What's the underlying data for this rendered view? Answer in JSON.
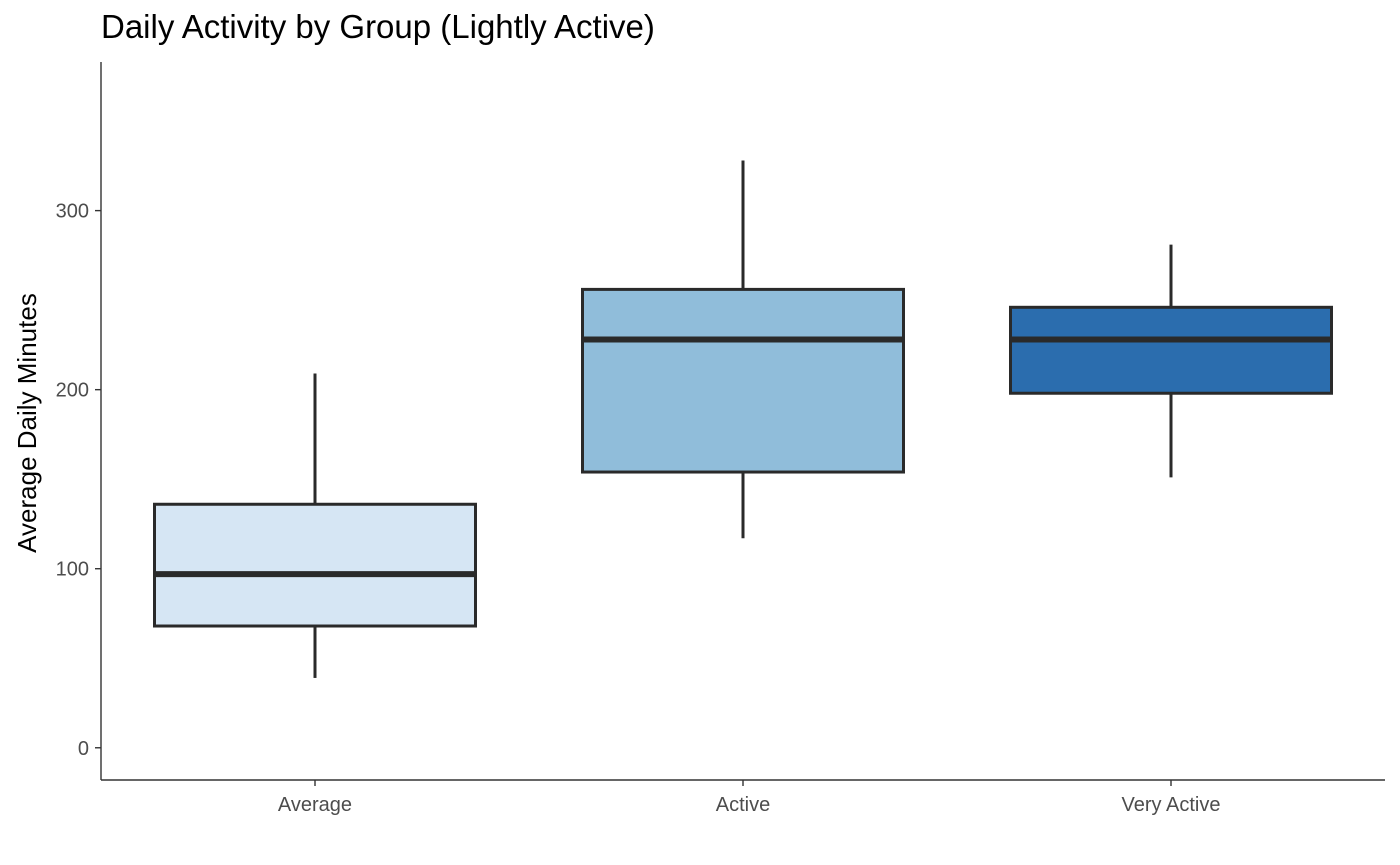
{
  "chart_data": {
    "type": "boxplot",
    "title": "Daily Activity by Group (Lightly Active)",
    "xlabel": "",
    "ylabel": "Average Daily Minutes",
    "ylim": [
      -18,
      383
    ],
    "yticks": [
      0,
      100,
      200,
      300
    ],
    "categories": [
      "Average",
      "Active",
      "Very Active"
    ],
    "boxes": [
      {
        "category": "Average",
        "min": 39,
        "q1": 68,
        "median": 97,
        "q3": 136,
        "max": 209,
        "color": "#d6e6f4"
      },
      {
        "category": "Active",
        "min": 117,
        "q1": 154,
        "median": 228,
        "q3": 256,
        "max": 328,
        "color": "#90bdda"
      },
      {
        "category": "Very Active",
        "min": 151,
        "q1": 198,
        "median": 228,
        "q3": 246,
        "max": 281,
        "color": "#2b6dae"
      }
    ],
    "grid": false,
    "legend": "none"
  }
}
